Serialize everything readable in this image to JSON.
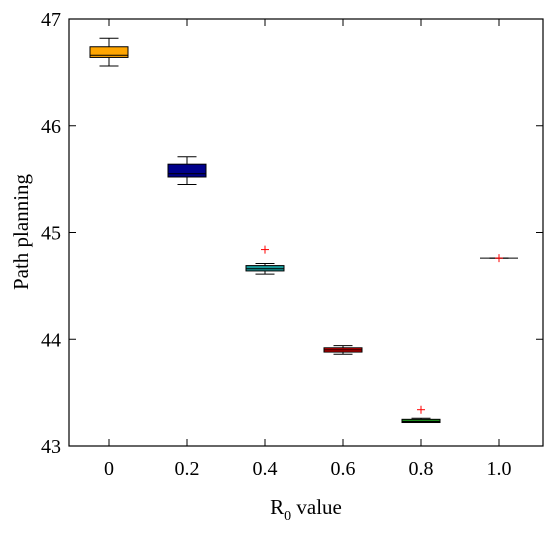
{
  "chart_data": {
    "type": "box",
    "xlabel": {
      "main": "R",
      "sub": "0",
      "rest": " value"
    },
    "ylabel": "Path planning",
    "ylim": [
      43,
      47
    ],
    "yticks": [
      43,
      44,
      45,
      46,
      47
    ],
    "grid": false,
    "categories": [
      "0",
      "0.2",
      "0.4",
      "0.6",
      "0.8",
      "1.0"
    ],
    "boxes": [
      {
        "category": "0",
        "whisker_low": 46.56,
        "q1": 46.64,
        "median": 46.66,
        "q3": 46.74,
        "whisker_high": 46.82,
        "outliers": [],
        "color": "#FFA500"
      },
      {
        "category": "0.2",
        "whisker_low": 45.45,
        "q1": 45.52,
        "median": 45.55,
        "q3": 45.64,
        "whisker_high": 45.71,
        "outliers": [],
        "color": "#00008B"
      },
      {
        "category": "0.4",
        "whisker_low": 44.61,
        "q1": 44.64,
        "median": 44.66,
        "q3": 44.69,
        "whisker_high": 44.71,
        "outliers": [
          44.84
        ],
        "color": "#1A9C9C"
      },
      {
        "category": "0.6",
        "whisker_low": 43.86,
        "q1": 43.88,
        "median": 43.9,
        "q3": 43.92,
        "whisker_high": 43.94,
        "outliers": [],
        "color": "#E00000"
      },
      {
        "category": "0.8",
        "whisker_low": 43.22,
        "q1": 43.22,
        "median": 43.23,
        "q3": 43.25,
        "whisker_high": 43.26,
        "outliers": [
          43.34
        ],
        "color": "#1E8C1E"
      },
      {
        "category": "1.0",
        "whisker_low": 44.76,
        "q1": 44.76,
        "median": 44.76,
        "q3": 44.76,
        "whisker_high": 44.76,
        "outliers": [
          44.76
        ],
        "color": "#808080"
      }
    ]
  }
}
